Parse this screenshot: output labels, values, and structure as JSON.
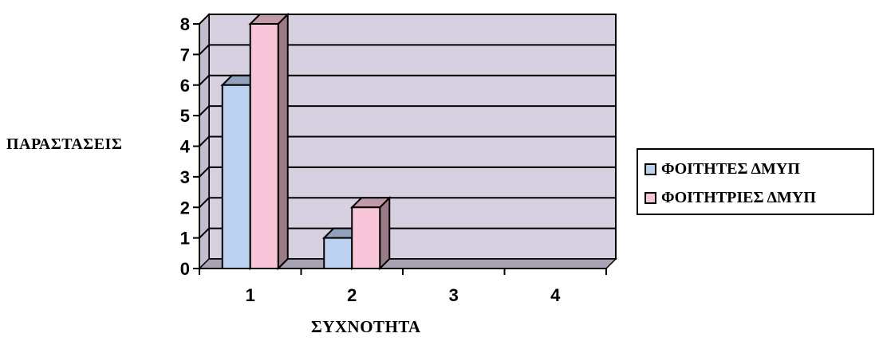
{
  "chart_data": {
    "type": "bar",
    "title": "",
    "xlabel": "ΣΥΧΝΟΤΗΤΑ",
    "ylabel": "ΠΑΡΑΣΤΑΣΕΙΣ",
    "categories": [
      "1",
      "2",
      "3",
      "4"
    ],
    "series": [
      {
        "name": "ΦΟΙΤΗΤΕΣ ΔΜΥΠ",
        "values": [
          6,
          1,
          0,
          0
        ],
        "color": "#bcd0f0"
      },
      {
        "name": "ΦΟΙΤΗΤΡΙΕΣ ΔΜΥΠ",
        "values": [
          8,
          2,
          0,
          0
        ],
        "color": "#f8c6d8"
      }
    ],
    "ylim": [
      0,
      8
    ],
    "yticks": [
      "0",
      "1",
      "2",
      "3",
      "4",
      "5",
      "6",
      "7",
      "8"
    ],
    "grid": true,
    "legend_position": "right",
    "three_d": true,
    "wall_color": "#d7d0e0"
  }
}
